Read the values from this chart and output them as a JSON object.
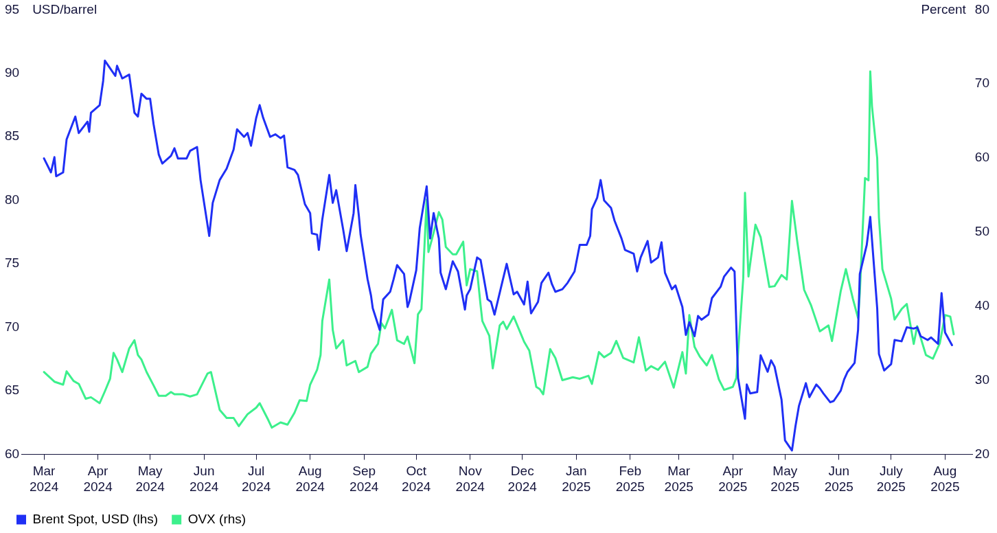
{
  "chart_data": {
    "type": "line",
    "ylabel": "USD/barrel",
    "y2label": "Percent",
    "legend": "bottom left",
    "grid": false,
    "marker": "none",
    "line_style": "solid",
    "xlim": [
      "2024-02-17",
      "2025-08-17"
    ],
    "xticks": [
      {
        "value": "2024-03-01",
        "label": "Mar 2024"
      },
      {
        "value": "2024-04-01",
        "label": "Apr 2024"
      },
      {
        "value": "2024-05-01",
        "label": "May 2024"
      },
      {
        "value": "2024-06-01",
        "label": "Jun 2024"
      },
      {
        "value": "2024-07-01",
        "label": "Jul 2024"
      },
      {
        "value": "2024-08-01",
        "label": "Aug 2024"
      },
      {
        "value": "2024-09-01",
        "label": "Sep 2024"
      },
      {
        "value": "2024-10-01",
        "label": "Oct 2024"
      },
      {
        "value": "2024-11-01",
        "label": "Nov 2024"
      },
      {
        "value": "2024-12-01",
        "label": "Dec 2024"
      },
      {
        "value": "2025-01-01",
        "label": "Jan 2025"
      },
      {
        "value": "2025-02-01",
        "label": "Feb 2025"
      },
      {
        "value": "2025-03-01",
        "label": "Mar 2025"
      },
      {
        "value": "2025-04-01",
        "label": "Apr 2025"
      },
      {
        "value": "2025-05-01",
        "label": "May 2025"
      },
      {
        "value": "2025-06-01",
        "label": "Jun 2025"
      },
      {
        "value": "2025-07-01",
        "label": "July 2025"
      },
      {
        "value": "2025-08-01",
        "label": "Aug 2025"
      }
    ],
    "ylim": [
      60,
      95
    ],
    "yticks": [
      60,
      65,
      70,
      75,
      80,
      85,
      90,
      95
    ],
    "y2lim": [
      20,
      80
    ],
    "y2ticks": [
      20,
      30,
      40,
      50,
      60,
      70,
      80
    ],
    "series": [
      {
        "name": "Brent Spot, USD (lhs)",
        "color": "#1f2ff5",
        "axis": "y",
        "x": [
          "2024-03-01",
          "2024-03-05",
          "2024-03-07",
          "2024-03-08",
          "2024-03-12",
          "2024-03-14",
          "2024-03-19",
          "2024-03-21",
          "2024-03-26",
          "2024-03-27",
          "2024-03-28",
          "2024-04-02",
          "2024-04-04",
          "2024-04-05",
          "2024-04-08",
          "2024-04-11",
          "2024-04-12",
          "2024-04-15",
          "2024-04-19",
          "2024-04-22",
          "2024-04-24",
          "2024-04-26",
          "2024-04-29",
          "2024-05-01",
          "2024-05-03",
          "2024-05-06",
          "2024-05-08",
          "2024-05-13",
          "2024-05-15",
          "2024-05-17",
          "2024-05-22",
          "2024-05-24",
          "2024-05-28",
          "2024-05-30",
          "2024-06-04",
          "2024-06-06",
          "2024-06-10",
          "2024-06-14",
          "2024-06-18",
          "2024-06-20",
          "2024-06-24",
          "2024-06-26",
          "2024-06-28",
          "2024-07-01",
          "2024-07-03",
          "2024-07-05",
          "2024-07-09",
          "2024-07-12",
          "2024-07-15",
          "2024-07-17",
          "2024-07-19",
          "2024-07-23",
          "2024-07-25",
          "2024-07-29",
          "2024-08-01",
          "2024-08-02",
          "2024-08-05",
          "2024-08-06",
          "2024-08-08",
          "2024-08-12",
          "2024-08-14",
          "2024-08-16",
          "2024-08-20",
          "2024-08-22",
          "2024-08-26",
          "2024-08-27",
          "2024-08-29",
          "2024-08-30",
          "2024-09-03",
          "2024-09-05",
          "2024-09-06",
          "2024-09-10",
          "2024-09-12",
          "2024-09-16",
          "2024-09-18",
          "2024-09-20",
          "2024-09-24",
          "2024-09-26",
          "2024-09-27",
          "2024-10-01",
          "2024-10-03",
          "2024-10-07",
          "2024-10-09",
          "2024-10-11",
          "2024-10-14",
          "2024-10-15",
          "2024-10-18",
          "2024-10-22",
          "2024-10-25",
          "2024-10-29",
          "2024-10-30",
          "2024-11-01",
          "2024-11-05",
          "2024-11-07",
          "2024-11-11",
          "2024-11-13",
          "2024-11-15",
          "2024-11-19",
          "2024-11-22",
          "2024-11-26",
          "2024-11-28",
          "2024-12-02",
          "2024-12-04",
          "2024-12-06",
          "2024-12-10",
          "2024-12-12",
          "2024-12-16",
          "2024-12-18",
          "2024-12-20",
          "2024-12-24",
          "2024-12-27",
          "2024-12-31",
          "2025-01-03",
          "2025-01-07",
          "2025-01-09",
          "2025-01-10",
          "2025-01-13",
          "2025-01-15",
          "2025-01-17",
          "2025-01-21",
          "2025-01-23",
          "2025-01-27",
          "2025-01-29",
          "2025-02-03",
          "2025-02-05",
          "2025-02-07",
          "2025-02-11",
          "2025-02-13",
          "2025-02-17",
          "2025-02-19",
          "2025-02-21",
          "2025-02-25",
          "2025-02-27",
          "2025-03-03",
          "2025-03-05",
          "2025-03-07",
          "2025-03-10",
          "2025-03-12",
          "2025-03-14",
          "2025-03-18",
          "2025-03-20",
          "2025-03-25",
          "2025-03-27",
          "2025-03-31",
          "2025-04-02",
          "2025-04-04",
          "2025-04-08",
          "2025-04-09",
          "2025-04-11",
          "2025-04-15",
          "2025-04-17",
          "2025-04-21",
          "2025-04-23",
          "2025-04-25",
          "2025-04-29",
          "2025-05-01",
          "2025-05-05",
          "2025-05-07",
          "2025-05-09",
          "2025-05-13",
          "2025-05-15",
          "2025-05-19",
          "2025-05-21",
          "2025-05-23",
          "2025-05-27",
          "2025-05-29",
          "2025-06-02",
          "2025-06-04",
          "2025-06-06",
          "2025-06-10",
          "2025-06-12",
          "2025-06-13",
          "2025-06-17",
          "2025-06-19",
          "2025-06-23",
          "2025-06-24",
          "2025-06-27",
          "2025-07-01",
          "2025-07-03",
          "2025-07-07",
          "2025-07-10",
          "2025-07-14",
          "2025-07-16",
          "2025-07-18",
          "2025-07-22",
          "2025-07-24",
          "2025-07-28",
          "2025-07-30",
          "2025-08-01",
          "2025-08-05"
        ],
        "values": [
          83.3,
          82.2,
          83.4,
          81.9,
          82.2,
          84.8,
          86.6,
          85.3,
          86.2,
          85.4,
          86.9,
          87.5,
          89.4,
          91.0,
          90.4,
          89.8,
          90.6,
          89.6,
          89.9,
          86.9,
          86.6,
          88.4,
          88.0,
          88.0,
          86.0,
          83.6,
          82.9,
          83.5,
          84.1,
          83.3,
          83.3,
          83.9,
          84.2,
          81.6,
          77.2,
          79.8,
          81.6,
          82.5,
          84.0,
          85.6,
          85.0,
          85.3,
          84.3,
          86.5,
          87.5,
          86.5,
          85.0,
          85.2,
          84.9,
          85.1,
          82.6,
          82.4,
          82.0,
          79.7,
          79.0,
          77.4,
          77.3,
          76.1,
          78.5,
          82.0,
          79.8,
          80.8,
          77.7,
          76.0,
          79.0,
          81.2,
          78.8,
          77.3,
          73.8,
          72.5,
          71.5,
          69.8,
          72.2,
          72.8,
          73.8,
          74.9,
          74.2,
          71.6,
          72.0,
          74.5,
          77.8,
          81.1,
          77.0,
          79.0,
          77.0,
          74.3,
          73.0,
          75.2,
          74.4,
          71.4,
          72.5,
          73.0,
          75.5,
          75.3,
          72.2,
          72.0,
          71.0,
          73.3,
          75.0,
          72.6,
          72.8,
          71.8,
          73.6,
          71.1,
          72.0,
          73.5,
          74.3,
          73.4,
          72.8,
          73.0,
          73.5,
          74.4,
          76.5,
          76.5,
          77.2,
          79.3,
          80.2,
          81.6,
          80.0,
          79.4,
          78.4,
          77.0,
          76.1,
          75.8,
          74.4,
          75.5,
          76.8,
          75.1,
          75.5,
          76.7,
          74.3,
          73.0,
          73.3,
          71.6,
          69.4,
          70.4,
          69.3,
          70.9,
          70.6,
          71.0,
          72.3,
          73.2,
          74.0,
          74.7,
          74.4,
          66.0,
          62.8,
          65.5,
          64.8,
          64.9,
          67.8,
          66.5,
          67.4,
          66.9,
          64.3,
          61.1,
          60.3,
          62.2,
          63.8,
          65.6,
          64.5,
          65.5,
          65.2,
          64.8,
          64.1,
          64.2,
          65.0,
          65.9,
          66.5,
          67.2,
          69.8,
          74.2,
          76.5,
          78.7,
          71.5,
          67.9,
          66.6,
          67.1,
          69.0,
          68.9,
          70.0,
          69.9,
          70.0,
          69.3,
          69.0,
          69.2,
          68.7,
          72.7,
          69.6,
          68.6
        ]
      },
      {
        "name": "OVX (rhs)",
        "color": "#3cf08c",
        "axis": "y2",
        "x": [
          "2024-03-01",
          "2024-03-07",
          "2024-03-12",
          "2024-03-14",
          "2024-03-18",
          "2024-03-21",
          "2024-03-25",
          "2024-03-28",
          "2024-04-02",
          "2024-04-05",
          "2024-04-08",
          "2024-04-10",
          "2024-04-12",
          "2024-04-15",
          "2024-04-19",
          "2024-04-22",
          "2024-04-24",
          "2024-04-26",
          "2024-04-29",
          "2024-05-03",
          "2024-05-06",
          "2024-05-10",
          "2024-05-13",
          "2024-05-15",
          "2024-05-20",
          "2024-05-24",
          "2024-05-28",
          "2024-06-03",
          "2024-06-05",
          "2024-06-10",
          "2024-06-14",
          "2024-06-18",
          "2024-06-21",
          "2024-06-26",
          "2024-07-01",
          "2024-07-03",
          "2024-07-08",
          "2024-07-10",
          "2024-07-15",
          "2024-07-19",
          "2024-07-23",
          "2024-07-26",
          "2024-07-30",
          "2024-08-01",
          "2024-08-05",
          "2024-08-07",
          "2024-08-08",
          "2024-08-12",
          "2024-08-14",
          "2024-08-16",
          "2024-08-20",
          "2024-08-22",
          "2024-08-27",
          "2024-08-29",
          "2024-09-03",
          "2024-09-05",
          "2024-09-09",
          "2024-09-11",
          "2024-09-13",
          "2024-09-17",
          "2024-09-20",
          "2024-09-24",
          "2024-09-26",
          "2024-09-30",
          "2024-10-02",
          "2024-10-04",
          "2024-10-07",
          "2024-10-08",
          "2024-10-10",
          "2024-10-14",
          "2024-10-16",
          "2024-10-18",
          "2024-10-22",
          "2024-10-24",
          "2024-10-28",
          "2024-10-30",
          "2024-11-01",
          "2024-11-05",
          "2024-11-07",
          "2024-11-08",
          "2024-11-12",
          "2024-11-14",
          "2024-11-18",
          "2024-11-20",
          "2024-11-22",
          "2024-11-26",
          "2024-12-02",
          "2024-12-05",
          "2024-12-09",
          "2024-12-11",
          "2024-12-13",
          "2024-12-17",
          "2024-12-20",
          "2024-12-24",
          "2024-12-30",
          "2025-01-03",
          "2025-01-08",
          "2025-01-10",
          "2025-01-14",
          "2025-01-17",
          "2025-01-21",
          "2025-01-24",
          "2025-01-28",
          "2025-02-03",
          "2025-02-06",
          "2025-02-10",
          "2025-02-13",
          "2025-02-17",
          "2025-02-21",
          "2025-02-26",
          "2025-03-03",
          "2025-03-05",
          "2025-03-07",
          "2025-03-10",
          "2025-03-13",
          "2025-03-17",
          "2025-03-20",
          "2025-03-24",
          "2025-03-27",
          "2025-04-01",
          "2025-04-03",
          "2025-04-07",
          "2025-04-08",
          "2025-04-10",
          "2025-04-14",
          "2025-04-17",
          "2025-04-22",
          "2025-04-25",
          "2025-04-29",
          "2025-05-02",
          "2025-05-05",
          "2025-05-08",
          "2025-05-12",
          "2025-05-16",
          "2025-05-21",
          "2025-05-26",
          "2025-05-28",
          "2025-06-02",
          "2025-06-05",
          "2025-06-09",
          "2025-06-12",
          "2025-06-13",
          "2025-06-16",
          "2025-06-18",
          "2025-06-19",
          "2025-06-20",
          "2025-06-23",
          "2025-06-24",
          "2025-06-26",
          "2025-07-01",
          "2025-07-03",
          "2025-07-07",
          "2025-07-10",
          "2025-07-14",
          "2025-07-16",
          "2025-07-21",
          "2025-07-25",
          "2025-07-29",
          "2025-08-01",
          "2025-08-04",
          "2025-08-06"
        ],
        "values": [
          31.1,
          29.8,
          29.4,
          31.2,
          29.9,
          29.5,
          27.5,
          27.7,
          26.9,
          28.5,
          30.2,
          33.7,
          32.8,
          31.1,
          34.3,
          35.4,
          33.4,
          32.8,
          31.1,
          29.3,
          27.9,
          27.9,
          28.4,
          28.1,
          28.1,
          27.8,
          28.1,
          30.9,
          31.1,
          26.0,
          24.9,
          24.9,
          23.8,
          25.4,
          26.3,
          26.9,
          24.6,
          23.6,
          24.3,
          24.0,
          25.6,
          27.3,
          27.2,
          29.4,
          31.4,
          33.4,
          38.0,
          43.6,
          36.8,
          34.3,
          35.4,
          32.0,
          32.6,
          31.1,
          31.8,
          33.6,
          34.9,
          37.7,
          37.0,
          39.5,
          35.4,
          34.9,
          35.9,
          32.3,
          38.9,
          39.6,
          54.4,
          47.3,
          49.0,
          52.7,
          51.7,
          48.0,
          47.0,
          47.0,
          48.7,
          42.8,
          45.0,
          44.7,
          40.1,
          38.0,
          36.0,
          31.6,
          37.4,
          37.9,
          36.9,
          38.6,
          35.2,
          34.0,
          29.1,
          28.8,
          28.1,
          34.2,
          33.0,
          30.0,
          30.4,
          30.2,
          30.6,
          29.5,
          33.8,
          33.1,
          33.7,
          35.3,
          33.0,
          32.4,
          35.8,
          31.3,
          31.9,
          31.4,
          32.5,
          29.0,
          33.8,
          30.9,
          38.8,
          34.5,
          33.2,
          32.0,
          33.4,
          30.1,
          28.7,
          29.1,
          30.3,
          43.8,
          55.3,
          44.0,
          51.0,
          49.3,
          42.6,
          42.7,
          44.2,
          43.6,
          54.2,
          48.8,
          42.2,
          40.1,
          36.6,
          37.4,
          35.3,
          42.0,
          45.0,
          41.0,
          38.4,
          41.8,
          57.3,
          57.0,
          71.7,
          67.0,
          60.0,
          52.0,
          45.0,
          41.0,
          38.2,
          39.6,
          40.3,
          34.9,
          37.3,
          33.4,
          32.9,
          35.0,
          38.8,
          38.6,
          36.2
        ]
      }
    ]
  }
}
